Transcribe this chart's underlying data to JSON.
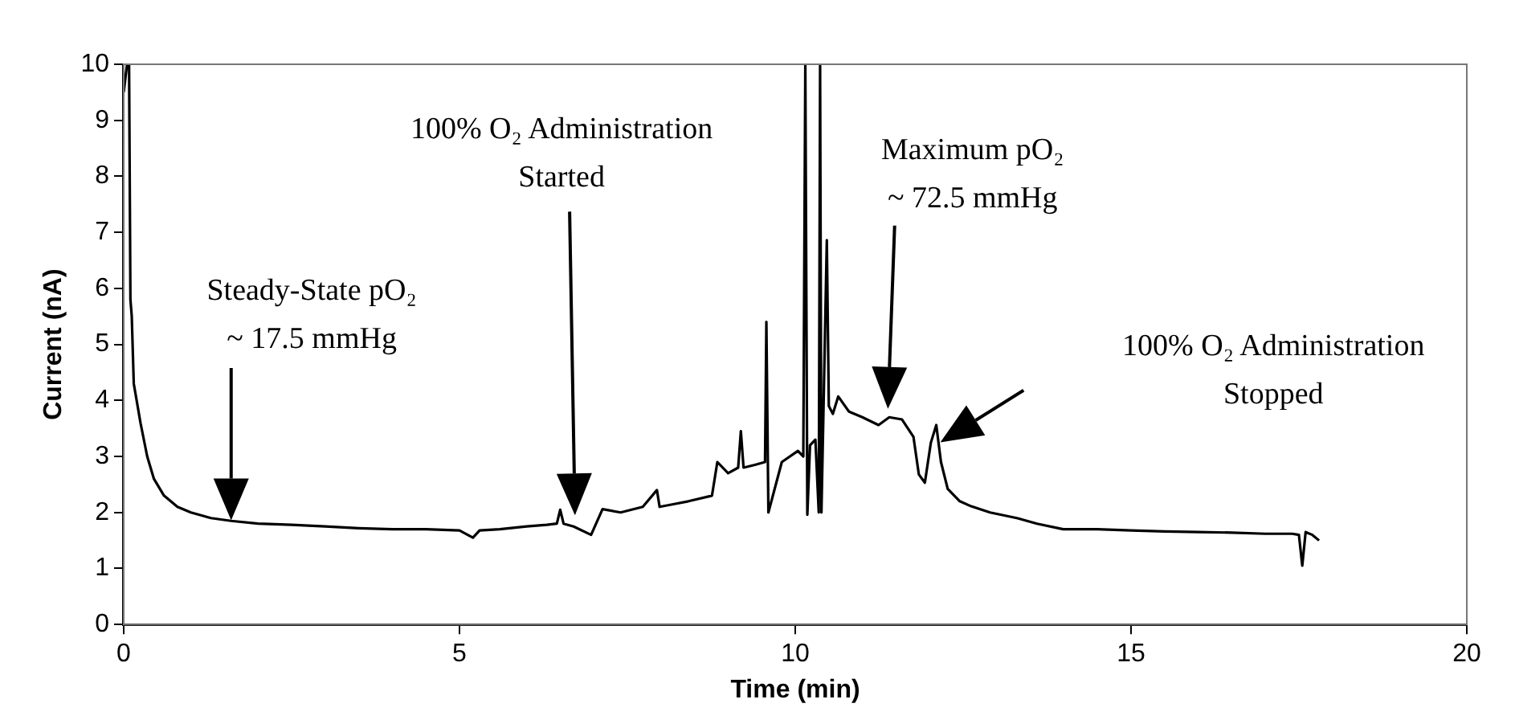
{
  "chart_data": {
    "type": "line",
    "xlabel": "Time (min)",
    "ylabel": "Current (nA)",
    "xlim": [
      0,
      20
    ],
    "ylim": [
      0,
      10
    ],
    "xticks": [
      0,
      5,
      10,
      15,
      20
    ],
    "yticks": [
      0,
      1,
      2,
      3,
      4,
      5,
      6,
      7,
      8,
      9,
      10
    ],
    "grid": false,
    "legend": false,
    "marker": "none",
    "line_style": "solid",
    "series": [
      {
        "color": "#000000",
        "x": [
          0,
          0.05,
          0.08,
          0.1,
          0.12,
          0.15,
          0.25,
          0.35,
          0.45,
          0.6,
          0.8,
          1.0,
          1.3,
          1.6,
          2.0,
          2.5,
          3.0,
          3.5,
          4.0,
          4.5,
          5.0,
          5.2,
          5.3,
          5.6,
          6.0,
          6.3,
          6.45,
          6.5,
          6.55,
          6.7,
          6.96,
          7.13,
          7.4,
          7.73,
          7.94,
          7.98,
          8.2,
          8.41,
          8.76,
          8.84,
          9.0,
          9.15,
          9.19,
          9.23,
          9.4,
          9.55,
          9.57,
          9.6,
          9.8,
          10.04,
          10.12,
          10.15,
          10.18,
          10.22,
          10.3,
          10.35,
          10.37,
          10.39,
          10.42,
          10.47,
          10.5,
          10.56,
          10.64,
          10.8,
          11.0,
          11.24,
          11.4,
          11.59,
          11.76,
          11.84,
          11.93,
          12.02,
          12.1,
          12.17,
          12.27,
          12.45,
          12.62,
          12.9,
          13.3,
          13.6,
          13.99,
          14.5,
          15.0,
          15.5,
          16.0,
          16.5,
          17.0,
          17.4,
          17.5,
          17.55,
          17.6,
          17.7,
          17.8
        ],
        "values": [
          9.5,
          10,
          10,
          5.8,
          5.5,
          4.3,
          3.6,
          3.0,
          2.6,
          2.3,
          2.1,
          2.0,
          1.9,
          1.85,
          1.8,
          1.78,
          1.75,
          1.72,
          1.7,
          1.7,
          1.68,
          1.55,
          1.68,
          1.7,
          1.75,
          1.78,
          1.8,
          2.05,
          1.8,
          1.75,
          1.6,
          2.06,
          2.0,
          2.1,
          2.4,
          2.1,
          2.15,
          2.2,
          2.3,
          2.9,
          2.7,
          2.8,
          3.45,
          2.8,
          2.85,
          2.9,
          5.4,
          2.0,
          2.9,
          3.1,
          3.0,
          10,
          1.96,
          3.2,
          3.3,
          2.0,
          10,
          2.0,
          3.8,
          6.86,
          3.9,
          3.76,
          4.07,
          3.8,
          3.7,
          3.56,
          3.7,
          3.66,
          3.35,
          2.68,
          2.53,
          3.25,
          3.56,
          2.9,
          2.42,
          2.2,
          2.11,
          2.0,
          1.9,
          1.8,
          1.7,
          1.7,
          1.68,
          1.66,
          1.65,
          1.64,
          1.62,
          1.62,
          1.6,
          1.05,
          1.65,
          1.6,
          1.5
        ]
      }
    ],
    "annotations": [
      "Steady-State pO₂\n~ 17.5 mmHg",
      "100% O₂ Administration\nStarted",
      "Maximum pO₂\n~ 72.5 mmHg",
      "100% O₂ Administration\nStopped"
    ]
  }
}
